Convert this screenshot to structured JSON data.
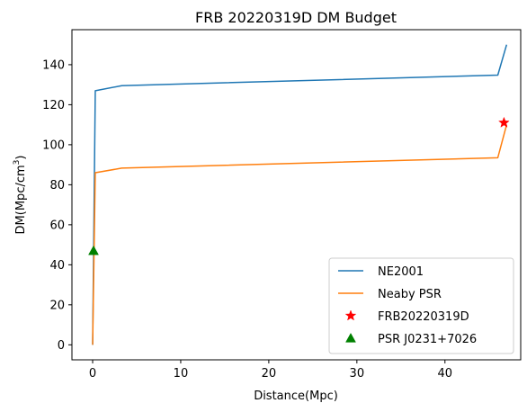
{
  "chart_data": {
    "type": "line",
    "title": "FRB 20220319D DM Budget",
    "xlabel": "Distance(Mpc)",
    "ylabel": "DM(Mpc/cm",
    "ylabel_sup": "3",
    "ylabel_close": ")",
    "xlim": [
      -2.35,
      48.6
    ],
    "ylim": [
      -7.5,
      157.5
    ],
    "xticks": [
      0,
      10,
      20,
      30,
      40
    ],
    "yticks": [
      0,
      20,
      40,
      60,
      80,
      100,
      120,
      140
    ],
    "grid": false,
    "legend_position": "lower-right",
    "series": [
      {
        "name": "NE2001",
        "kind": "line",
        "color": "#1f77b4",
        "x": [
          0.0,
          0.3,
          3.3,
          46.0,
          47.0
        ],
        "y": [
          0,
          127,
          129.5,
          134.8,
          150
        ]
      },
      {
        "name": "Neaby PSR",
        "kind": "line",
        "color": "#ff7f0e",
        "x": [
          0.0,
          0.3,
          3.3,
          46.0,
          47.0
        ],
        "y": [
          0,
          86,
          88.3,
          93.5,
          110
        ]
      },
      {
        "name": "FRB20220319D",
        "kind": "marker",
        "marker": "star",
        "color": "#ff0000",
        "x": [
          46.7
        ],
        "y": [
          111
        ]
      },
      {
        "name": "PSR J0231+7026",
        "kind": "marker",
        "marker": "triangle",
        "color": "#008000",
        "x": [
          0.1
        ],
        "y": [
          47
        ]
      }
    ]
  }
}
